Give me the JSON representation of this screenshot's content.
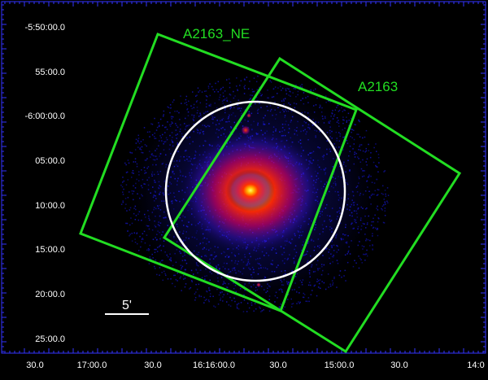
{
  "dec_labels": [
    "-5:50:00.0",
    "55:00.0",
    "-6:00:00.0",
    "05:00.0",
    "10:00.0",
    "15:00.0",
    "20:00.0",
    "25:00.0"
  ],
  "ra_labels": [
    "30.0",
    "17:00.0",
    "30.0",
    "16:16:00.0",
    "30.0",
    "15:00.0",
    "30.0",
    "14:0"
  ],
  "regions": [
    {
      "name": "A2163_NE",
      "color": "#22dd22"
    },
    {
      "name": "A2163",
      "color": "#22dd22"
    }
  ],
  "circle_color": "#ffffff",
  "scale_bar": {
    "label": "5'",
    "color": "#ffffff"
  },
  "frame_color": "#3333ff"
}
